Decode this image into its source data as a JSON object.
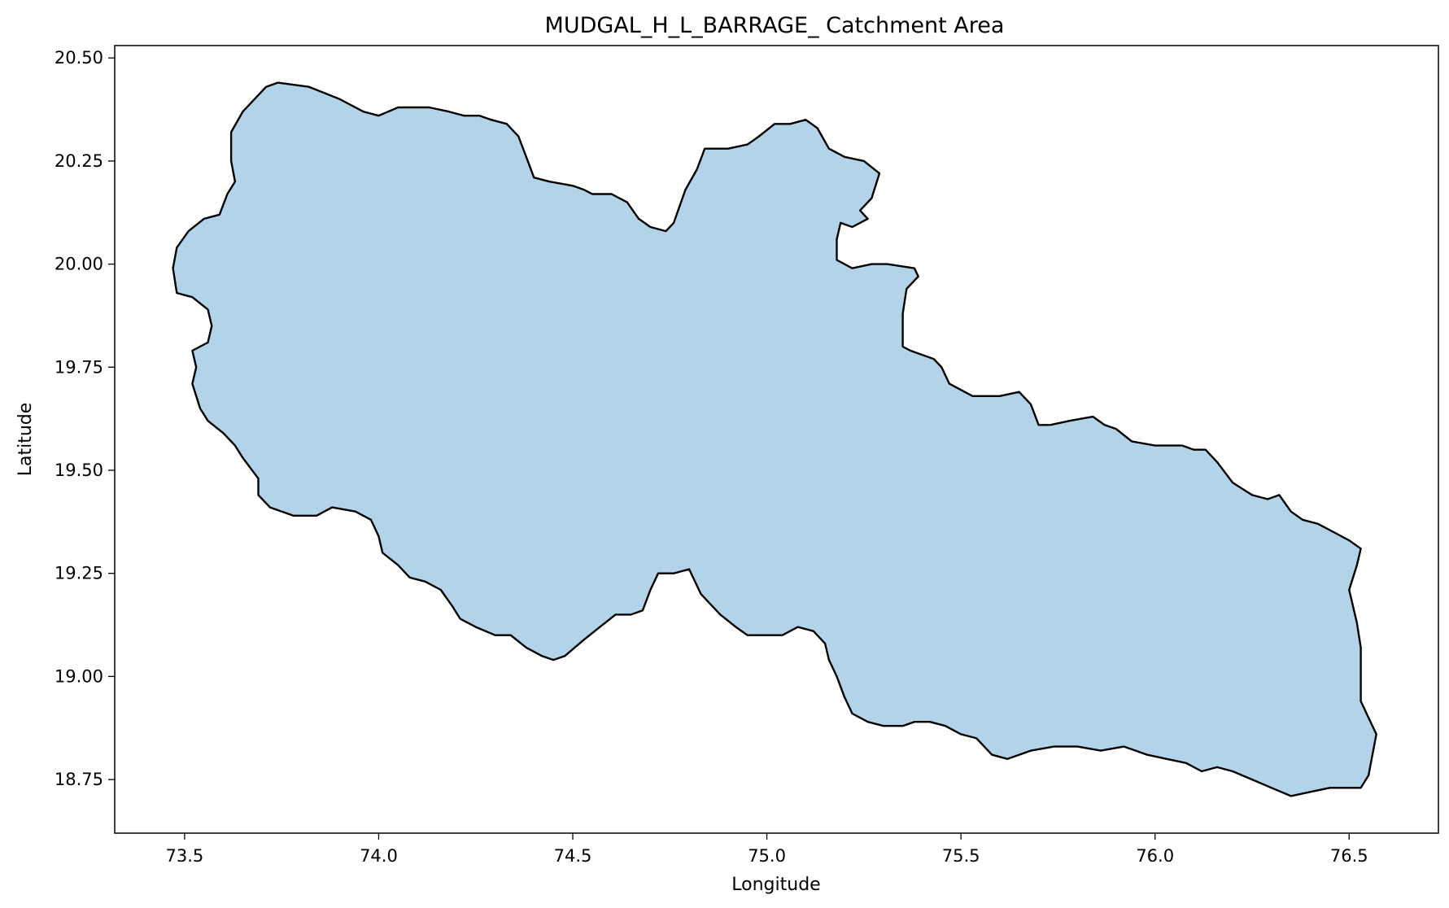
{
  "chart_data": {
    "type": "map",
    "title": "MUDGAL_H_L_BARRAGE_ Catchment Area",
    "xlabel": "Longitude",
    "ylabel": "Latitude",
    "xlim": [
      73.32,
      76.73
    ],
    "ylim": [
      18.62,
      20.53
    ],
    "xticks": [
      73.5,
      74.0,
      74.5,
      75.0,
      75.5,
      76.0,
      76.5
    ],
    "xtick_labels": [
      "73.5",
      "74.0",
      "74.5",
      "75.0",
      "75.5",
      "76.0",
      "76.5"
    ],
    "yticks": [
      18.75,
      19.0,
      19.25,
      19.5,
      19.75,
      20.0,
      20.25,
      20.5
    ],
    "ytick_labels": [
      "18.75",
      "19.00",
      "19.25",
      "19.50",
      "19.75",
      "20.00",
      "20.25",
      "20.50"
    ],
    "grid": false,
    "fill_color": "#b3d4e8",
    "edge_color": "#000000",
    "catchment_boundary": [
      [
        73.74,
        20.44
      ],
      [
        73.82,
        20.43
      ],
      [
        73.9,
        20.4
      ],
      [
        73.96,
        20.37
      ],
      [
        74.0,
        20.36
      ],
      [
        74.05,
        20.38
      ],
      [
        74.13,
        20.38
      ],
      [
        74.18,
        20.37
      ],
      [
        74.22,
        20.36
      ],
      [
        74.26,
        20.36
      ],
      [
        74.29,
        20.35
      ],
      [
        74.33,
        20.34
      ],
      [
        74.36,
        20.31
      ],
      [
        74.38,
        20.26
      ],
      [
        74.4,
        20.21
      ],
      [
        74.44,
        20.2
      ],
      [
        74.5,
        20.19
      ],
      [
        74.53,
        20.18
      ],
      [
        74.55,
        20.17
      ],
      [
        74.6,
        20.17
      ],
      [
        74.64,
        20.15
      ],
      [
        74.67,
        20.11
      ],
      [
        74.7,
        20.09
      ],
      [
        74.74,
        20.08
      ],
      [
        74.76,
        20.1
      ],
      [
        74.79,
        20.18
      ],
      [
        74.82,
        20.23
      ],
      [
        74.84,
        20.28
      ],
      [
        74.87,
        20.28
      ],
      [
        74.9,
        20.28
      ],
      [
        74.95,
        20.29
      ],
      [
        74.98,
        20.31
      ],
      [
        75.02,
        20.34
      ],
      [
        75.06,
        20.34
      ],
      [
        75.1,
        20.35
      ],
      [
        75.13,
        20.33
      ],
      [
        75.16,
        20.28
      ],
      [
        75.2,
        20.26
      ],
      [
        75.25,
        20.25
      ],
      [
        75.29,
        20.22
      ],
      [
        75.27,
        20.16
      ],
      [
        75.24,
        20.13
      ],
      [
        75.26,
        20.11
      ],
      [
        75.22,
        20.09
      ],
      [
        75.19,
        20.1
      ],
      [
        75.18,
        20.06
      ],
      [
        75.18,
        20.01
      ],
      [
        75.22,
        19.99
      ],
      [
        75.27,
        20.0
      ],
      [
        75.31,
        20.0
      ],
      [
        75.38,
        19.99
      ],
      [
        75.39,
        19.97
      ],
      [
        75.36,
        19.94
      ],
      [
        75.35,
        19.88
      ],
      [
        75.35,
        19.8
      ],
      [
        75.37,
        19.79
      ],
      [
        75.43,
        19.77
      ],
      [
        75.45,
        19.75
      ],
      [
        75.47,
        19.71
      ],
      [
        75.53,
        19.68
      ],
      [
        75.6,
        19.68
      ],
      [
        75.65,
        19.69
      ],
      [
        75.68,
        19.66
      ],
      [
        75.7,
        19.61
      ],
      [
        75.73,
        19.61
      ],
      [
        75.78,
        19.62
      ],
      [
        75.84,
        19.63
      ],
      [
        75.87,
        19.61
      ],
      [
        75.9,
        19.6
      ],
      [
        75.94,
        19.57
      ],
      [
        76.0,
        19.56
      ],
      [
        76.04,
        19.56
      ],
      [
        76.07,
        19.56
      ],
      [
        76.1,
        19.55
      ],
      [
        76.13,
        19.55
      ],
      [
        76.16,
        19.52
      ],
      [
        76.2,
        19.47
      ],
      [
        76.25,
        19.44
      ],
      [
        76.29,
        19.43
      ],
      [
        76.32,
        19.44
      ],
      [
        76.35,
        19.4
      ],
      [
        76.38,
        19.38
      ],
      [
        76.42,
        19.37
      ],
      [
        76.46,
        19.35
      ],
      [
        76.5,
        19.33
      ],
      [
        76.53,
        19.31
      ],
      [
        76.52,
        19.27
      ],
      [
        76.5,
        19.21
      ],
      [
        76.52,
        19.13
      ],
      [
        76.53,
        19.07
      ],
      [
        76.53,
        19.0
      ],
      [
        76.53,
        18.94
      ],
      [
        76.55,
        18.9
      ],
      [
        76.57,
        18.86
      ],
      [
        76.56,
        18.81
      ],
      [
        76.55,
        18.76
      ],
      [
        76.53,
        18.73
      ],
      [
        76.45,
        18.73
      ],
      [
        76.4,
        18.72
      ],
      [
        76.35,
        18.71
      ],
      [
        76.3,
        18.73
      ],
      [
        76.25,
        18.75
      ],
      [
        76.2,
        18.77
      ],
      [
        76.16,
        18.78
      ],
      [
        76.12,
        18.77
      ],
      [
        76.08,
        18.79
      ],
      [
        76.03,
        18.8
      ],
      [
        75.98,
        18.81
      ],
      [
        75.92,
        18.83
      ],
      [
        75.86,
        18.82
      ],
      [
        75.8,
        18.83
      ],
      [
        75.74,
        18.83
      ],
      [
        75.68,
        18.82
      ],
      [
        75.62,
        18.8
      ],
      [
        75.58,
        18.81
      ],
      [
        75.54,
        18.85
      ],
      [
        75.5,
        18.86
      ],
      [
        75.46,
        18.88
      ],
      [
        75.42,
        18.89
      ],
      [
        75.38,
        18.89
      ],
      [
        75.35,
        18.88
      ],
      [
        75.3,
        18.88
      ],
      [
        75.26,
        18.89
      ],
      [
        75.22,
        18.91
      ],
      [
        75.2,
        18.95
      ],
      [
        75.18,
        19.0
      ],
      [
        75.16,
        19.04
      ],
      [
        75.15,
        19.08
      ],
      [
        75.12,
        19.11
      ],
      [
        75.08,
        19.12
      ],
      [
        75.04,
        19.1
      ],
      [
        75.0,
        19.1
      ],
      [
        74.95,
        19.1
      ],
      [
        74.92,
        19.12
      ],
      [
        74.88,
        19.15
      ],
      [
        74.85,
        19.18
      ],
      [
        74.83,
        19.2
      ],
      [
        74.8,
        19.26
      ],
      [
        74.76,
        19.25
      ],
      [
        74.72,
        19.25
      ],
      [
        74.7,
        19.21
      ],
      [
        74.68,
        19.16
      ],
      [
        74.65,
        19.15
      ],
      [
        74.61,
        19.15
      ],
      [
        74.57,
        19.12
      ],
      [
        74.53,
        19.09
      ],
      [
        74.48,
        19.05
      ],
      [
        74.45,
        19.04
      ],
      [
        74.42,
        19.05
      ],
      [
        74.38,
        19.07
      ],
      [
        74.34,
        19.1
      ],
      [
        74.3,
        19.1
      ],
      [
        74.25,
        19.12
      ],
      [
        74.21,
        19.14
      ],
      [
        74.19,
        19.17
      ],
      [
        74.16,
        19.21
      ],
      [
        74.12,
        19.23
      ],
      [
        74.08,
        19.24
      ],
      [
        74.05,
        19.27
      ],
      [
        74.01,
        19.3
      ],
      [
        74.0,
        19.34
      ],
      [
        73.98,
        19.38
      ],
      [
        73.94,
        19.4
      ],
      [
        73.88,
        19.41
      ],
      [
        73.84,
        19.39
      ],
      [
        73.78,
        19.39
      ],
      [
        73.72,
        19.41
      ],
      [
        73.69,
        19.44
      ],
      [
        73.69,
        19.48
      ],
      [
        73.65,
        19.53
      ],
      [
        73.63,
        19.56
      ],
      [
        73.6,
        19.59
      ],
      [
        73.56,
        19.62
      ],
      [
        73.54,
        19.65
      ],
      [
        73.52,
        19.71
      ],
      [
        73.53,
        19.75
      ],
      [
        73.52,
        19.79
      ],
      [
        73.56,
        19.81
      ],
      [
        73.57,
        19.85
      ],
      [
        73.56,
        19.89
      ],
      [
        73.52,
        19.92
      ],
      [
        73.48,
        19.93
      ],
      [
        73.47,
        19.99
      ],
      [
        73.48,
        20.04
      ],
      [
        73.51,
        20.08
      ],
      [
        73.55,
        20.11
      ],
      [
        73.59,
        20.12
      ],
      [
        73.61,
        20.17
      ],
      [
        73.63,
        20.2
      ],
      [
        73.62,
        20.25
      ],
      [
        73.62,
        20.32
      ],
      [
        73.65,
        20.37
      ],
      [
        73.68,
        20.4
      ],
      [
        73.71,
        20.43
      ]
    ]
  }
}
